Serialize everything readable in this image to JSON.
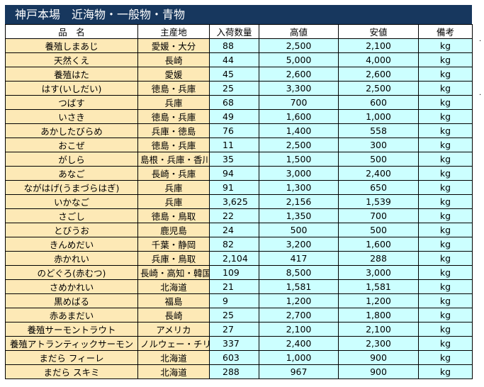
{
  "title": "神戸本場　近海物・一般物・青物",
  "headers": [
    "品　名",
    "主産地",
    "入荷数量",
    "高値",
    "安値",
    "備考"
  ],
  "rows": [
    {
      "name": "養殖しまあじ",
      "origin": "愛媛・大分",
      "qty": "88",
      "high": "2,500",
      "low": "2,100",
      "unit": "kg"
    },
    {
      "name": "天然くえ",
      "origin": "長崎",
      "qty": "44",
      "high": "5,000",
      "low": "4,000",
      "unit": "kg"
    },
    {
      "name": "養殖はた",
      "origin": "愛媛",
      "qty": "45",
      "high": "2,600",
      "low": "2,600",
      "unit": "kg"
    },
    {
      "name": "はす(いしだい)",
      "origin": "徳島・兵庫",
      "qty": "25",
      "high": "3,300",
      "low": "2,500",
      "unit": "kg"
    },
    {
      "name": "つばす",
      "origin": "兵庫",
      "qty": "68",
      "high": "700",
      "low": "600",
      "unit": "kg"
    },
    {
      "name": "いさき",
      "origin": "徳島・兵庫",
      "qty": "49",
      "high": "1,600",
      "low": "1,000",
      "unit": "kg"
    },
    {
      "name": "あかしたびらめ",
      "origin": "兵庫・徳島",
      "qty": "76",
      "high": "1,400",
      "low": "558",
      "unit": "kg"
    },
    {
      "name": "おこぜ",
      "origin": "徳島・兵庫",
      "qty": "11",
      "high": "2,500",
      "low": "300",
      "unit": "kg"
    },
    {
      "name": "がしら",
      "origin": "島根・兵庫・香川",
      "qty": "35",
      "high": "1,500",
      "low": "500",
      "unit": "kg"
    },
    {
      "name": "あなご",
      "origin": "長崎・兵庫",
      "qty": "94",
      "high": "3,000",
      "low": "2,400",
      "unit": "kg"
    },
    {
      "name": "ながはげ(うまづらはぎ)",
      "origin": "兵庫",
      "qty": "91",
      "high": "1,300",
      "low": "650",
      "unit": "kg"
    },
    {
      "name": "いかなご",
      "origin": "兵庫",
      "qty": "3,625",
      "high": "2,156",
      "low": "1,539",
      "unit": "kg"
    },
    {
      "name": "さごし",
      "origin": "徳島・鳥取",
      "qty": "22",
      "high": "1,350",
      "low": "700",
      "unit": "kg"
    },
    {
      "name": "とびうお",
      "origin": "鹿児島",
      "qty": "24",
      "high": "500",
      "low": "500",
      "unit": "kg"
    },
    {
      "name": "きんめだい",
      "origin": "千葉・静岡",
      "qty": "82",
      "high": "3,200",
      "low": "1,600",
      "unit": "kg"
    },
    {
      "name": "赤かれい",
      "origin": "兵庫・鳥取",
      "qty": "2,104",
      "high": "417",
      "low": "288",
      "unit": "kg"
    },
    {
      "name": "のどぐろ(赤むつ)",
      "origin": "長崎・高知・韓国他",
      "qty": "109",
      "high": "8,500",
      "low": "3,000",
      "unit": "kg"
    },
    {
      "name": "さめかれい",
      "origin": "北海道",
      "qty": "21",
      "high": "1,581",
      "low": "1,581",
      "unit": "kg"
    },
    {
      "name": "黒めばる",
      "origin": "福島",
      "qty": "9",
      "high": "1,200",
      "low": "1,200",
      "unit": "kg"
    },
    {
      "name": "赤あまだい",
      "origin": "長崎",
      "qty": "25",
      "high": "2,700",
      "low": "1,800",
      "unit": "kg"
    },
    {
      "name": "養殖サーモントラウト",
      "origin": "アメリカ",
      "qty": "27",
      "high": "2,100",
      "low": "2,100",
      "unit": "kg"
    },
    {
      "name": "養殖アトランティックサーモン",
      "origin": "ノルウェー・チリ他",
      "qty": "337",
      "high": "2,400",
      "low": "2,300",
      "unit": "kg"
    },
    {
      "name": "まだら フィーレ",
      "origin": "北海道",
      "qty": "603",
      "high": "1,000",
      "low": "900",
      "unit": "kg"
    },
    {
      "name": "まだら スキミ",
      "origin": "北海道",
      "qty": "288",
      "high": "967",
      "low": "900",
      "unit": "kg"
    }
  ],
  "side_marks": [
    ".",
    "."
  ]
}
